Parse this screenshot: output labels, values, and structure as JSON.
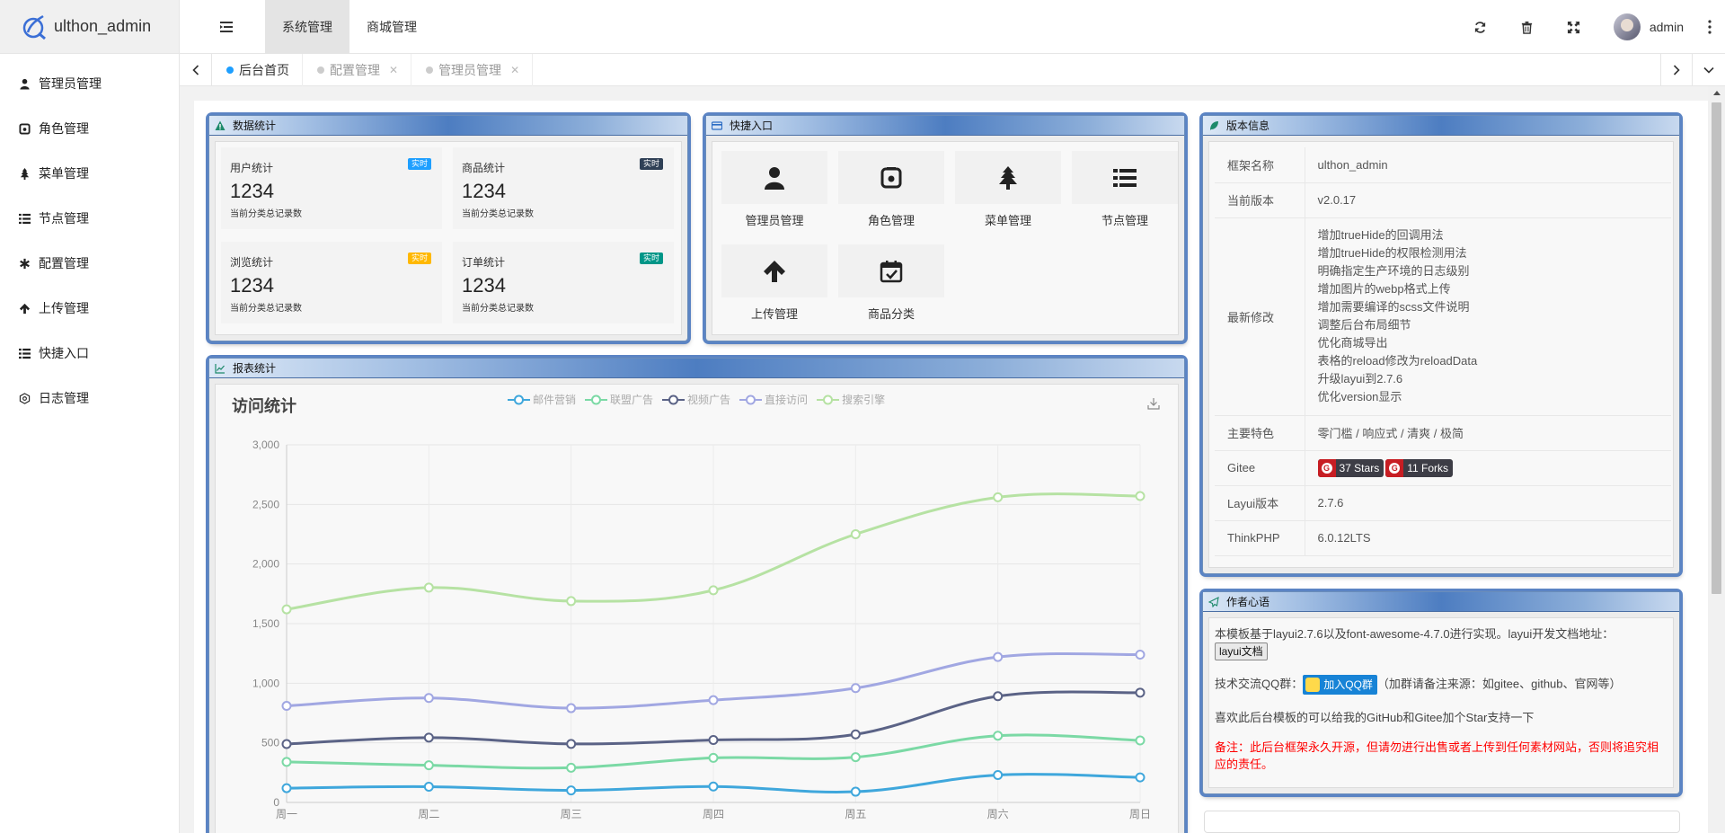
{
  "app": {
    "title": "ulthon_admin"
  },
  "sidebar": {
    "items": [
      {
        "label": "管理员管理",
        "icon": "user-icon"
      },
      {
        "label": "角色管理",
        "icon": "role-icon"
      },
      {
        "label": "菜单管理",
        "icon": "tree-icon"
      },
      {
        "label": "节点管理",
        "icon": "list-icon"
      },
      {
        "label": "配置管理",
        "icon": "asterisk-icon"
      },
      {
        "label": "上传管理",
        "icon": "arrow-up-icon"
      },
      {
        "label": "快捷入口",
        "icon": "list-icon"
      },
      {
        "label": "日志管理",
        "icon": "connectdevelop-icon"
      }
    ]
  },
  "header": {
    "menu": [
      "系统管理",
      "商城管理"
    ],
    "user": "admin"
  },
  "tabs": [
    {
      "label": "后台首页",
      "active": true
    },
    {
      "label": "配置管理",
      "active": false
    },
    {
      "label": "管理员管理",
      "active": false
    }
  ],
  "stats_panel": {
    "title": "数据统计",
    "cards": [
      {
        "title": "用户统计",
        "badge": "实时",
        "badge_color": "#1e9fff",
        "value": "1234",
        "sub": "当前分类总记录数"
      },
      {
        "title": "商品统计",
        "badge": "实时",
        "badge_color": "#2f4056",
        "value": "1234",
        "sub": "当前分类总记录数"
      },
      {
        "title": "浏览统计",
        "badge": "实时",
        "badge_color": "#ffb800",
        "value": "1234",
        "sub": "当前分类总记录数"
      },
      {
        "title": "订单统计",
        "badge": "实时",
        "badge_color": "#009688",
        "value": "1234",
        "sub": "当前分类总记录数"
      }
    ]
  },
  "shortcut_panel": {
    "title": "快捷入口",
    "items": [
      {
        "label": "管理员管理",
        "icon": "user-icon"
      },
      {
        "label": "角色管理",
        "icon": "role-icon"
      },
      {
        "label": "菜单管理",
        "icon": "tree-icon"
      },
      {
        "label": "节点管理",
        "icon": "list-icon"
      },
      {
        "label": "上传管理",
        "icon": "arrow-up-icon"
      },
      {
        "label": "商品分类",
        "icon": "calendar-check-icon"
      }
    ]
  },
  "version_panel": {
    "title": "版本信息",
    "rows": {
      "framework_key": "框架名称",
      "framework_val": "ulthon_admin",
      "version_key": "当前版本",
      "version_val": "v2.0.17",
      "changes_key": "最新修改",
      "changes": [
        "增加trueHide的回调用法",
        "增加trueHide的权限检测用法",
        "明确指定生产环境的日志级别",
        "增加图片的webp格式上传",
        "增加需要编译的scss文件说明",
        "调整后台布局细节",
        "优化商城导出",
        "表格的reload修改为reloadData",
        "升级layui到2.7.6",
        "优化version显示"
      ],
      "features_key": "主要特色",
      "features_val": "零门槛 / 响应式 / 清爽 / 极简",
      "gitee_key": "Gitee",
      "stars": "37 Stars",
      "forks": "11 Forks",
      "layui_key": "Layui版本",
      "layui_val": "2.7.6",
      "thinkphp_key": "ThinkPHP",
      "thinkphp_val": "6.0.12LTS"
    }
  },
  "author_panel": {
    "title": "作者心语",
    "intro": "本模板基于layui2.7.6以及font-awesome-4.7.0进行实现。layui开发文档地址：",
    "doc_button": "layui文档",
    "qq_prefix": "技术交流QQ群：",
    "qq_button": "加入QQ群",
    "qq_note": "（加群请备注来源：如gitee、github、官网等）",
    "star_text": "喜欢此后台模板的可以给我的GitHub和Gitee加个Star支持一下",
    "warning": "备注：此后台框架永久开源，但请勿进行出售或者上传到任何素材网站，否则将追究相应的责任。",
    "warning_color": "#ff0000"
  },
  "report_panel": {
    "title": "报表统计"
  },
  "chart_data": {
    "type": "line",
    "title": "访问统计",
    "categories": [
      "周一",
      "周二",
      "周三",
      "周四",
      "周五",
      "周六",
      "周日"
    ],
    "ylim": [
      0,
      3000
    ],
    "yticks": [
      "0",
      "500",
      "1,000",
      "1,500",
      "2,000",
      "2,500",
      "3,000"
    ],
    "smooth": true,
    "legend_position": "top",
    "series": [
      {
        "name": "邮件营销",
        "color": "#3fa7dc",
        "values": [
          120,
          132,
          101,
          134,
          90,
          230,
          210
        ]
      },
      {
        "name": "联盟广告",
        "color": "#7bd9a5",
        "values": [
          340,
          312,
          291,
          374,
          380,
          560,
          520
        ]
      },
      {
        "name": "视频广告",
        "color": "#5b6386",
        "values": [
          490,
          544,
          491,
          524,
          571,
          891,
          921
        ]
      },
      {
        "name": "直接访问",
        "color": "#a1a7e2",
        "values": [
          810,
          876,
          791,
          858,
          959,
          1220,
          1240
        ]
      },
      {
        "name": "搜索引擎",
        "color": "#b6e2a3",
        "values": [
          1620,
          1802,
          1689,
          1780,
          2250,
          2560,
          2570
        ]
      }
    ]
  }
}
